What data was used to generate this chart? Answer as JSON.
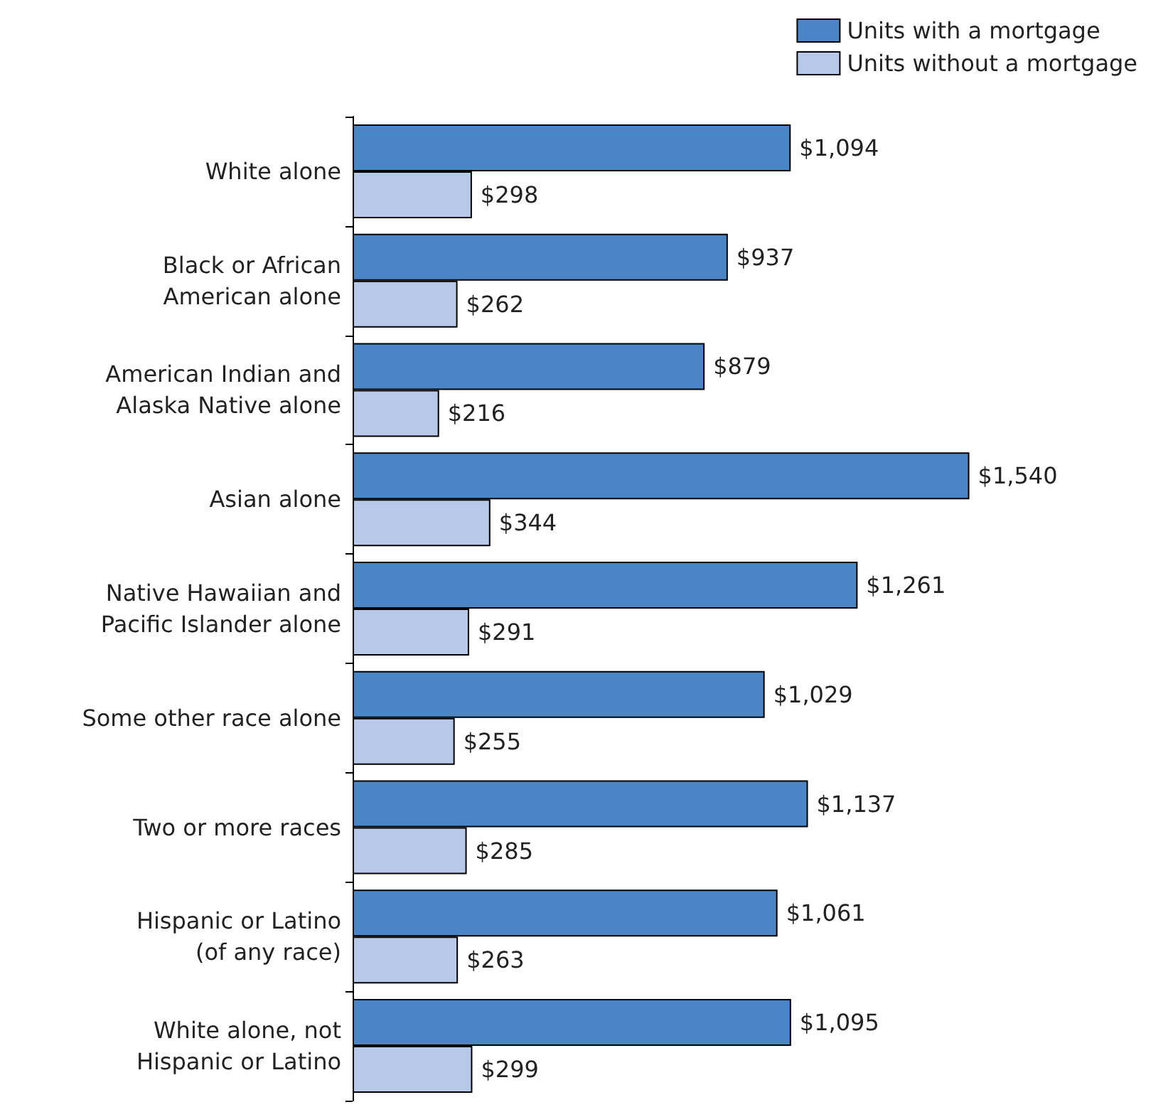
{
  "chart_data": {
    "type": "bar",
    "orientation": "horizontal",
    "legend": "top right",
    "categories": [
      "White alone",
      "Black or African\nAmerican alone",
      "American Indian and\nAlaska Native alone",
      "Asian alone",
      "Native Hawaiian and\nPacific Islander alone",
      "Some other race alone",
      "Two or more races",
      "Hispanic or Latino\n(of any race)",
      "White alone, not\nHispanic or Latino"
    ],
    "series": [
      {
        "name": "Units with a mortgage",
        "color": "#4a86c5",
        "values": [
          1094,
          937,
          879,
          1540,
          1261,
          1029,
          1137,
          1061,
          1095
        ],
        "value_labels": [
          "$1,094",
          "$937",
          "$879",
          "$1,540",
          "$1,261",
          "$1,029",
          "$1,137",
          "$1,061",
          "$1,095"
        ]
      },
      {
        "name": "Units without a mortgage",
        "color": "#b8c8e8",
        "values": [
          298,
          262,
          216,
          344,
          291,
          255,
          285,
          263,
          299
        ],
        "value_labels": [
          "$298",
          "$262",
          "$216",
          "$344",
          "$291",
          "$255",
          "$285",
          "$263",
          "$299"
        ]
      }
    ]
  }
}
